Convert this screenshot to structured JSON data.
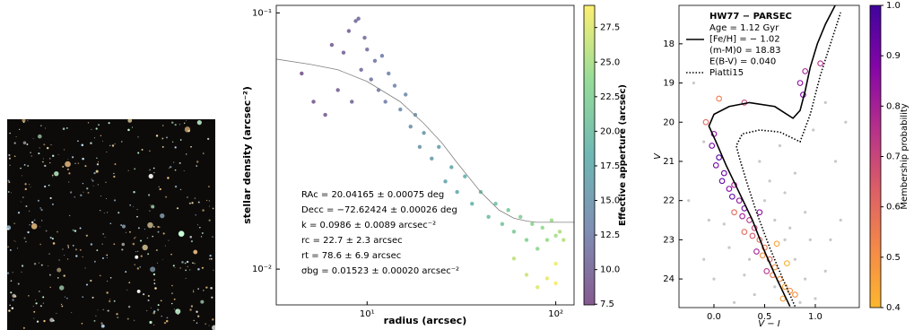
{
  "chart_data": [
    {
      "type": "scatter",
      "xlabel": "radius (arcsec)",
      "ylabel": "stellar density (arcsec⁻²)",
      "xscale": "log",
      "yscale": "log",
      "xlim": [
        3.3,
        125
      ],
      "ylim": [
        0.00725,
        0.107
      ],
      "xticks": [
        {
          "value": 10,
          "label": "10¹"
        },
        {
          "value": 100,
          "label": "10²"
        }
      ],
      "yticks": [
        {
          "value": 0.1,
          "label": "10⁻¹"
        },
        {
          "value": 0.01,
          "label": "10⁻²"
        }
      ],
      "x": [
        4.5,
        5.2,
        6,
        6.5,
        7,
        7.5,
        8,
        8.3,
        8.7,
        9,
        9.3,
        9.7,
        10,
        10.5,
        11,
        11.5,
        12,
        12.5,
        13,
        14,
        15,
        16,
        17,
        18,
        19,
        20,
        22,
        24,
        26,
        28,
        30,
        33,
        36,
        40,
        44,
        48,
        52,
        56,
        60,
        65,
        70,
        75,
        80,
        85,
        90,
        95,
        100,
        105,
        110,
        60,
        70,
        80,
        90,
        100,
        100
      ],
      "y": [
        0.058,
        0.045,
        0.04,
        0.075,
        0.05,
        0.07,
        0.085,
        0.045,
        0.093,
        0.095,
        0.06,
        0.08,
        0.072,
        0.055,
        0.065,
        0.05,
        0.068,
        0.045,
        0.058,
        0.052,
        0.042,
        0.048,
        0.036,
        0.04,
        0.03,
        0.034,
        0.027,
        0.03,
        0.022,
        0.025,
        0.02,
        0.023,
        0.018,
        0.02,
        0.016,
        0.018,
        0.015,
        0.017,
        0.014,
        0.016,
        0.013,
        0.015,
        0.012,
        0.0145,
        0.013,
        0.0155,
        0.0135,
        0.014,
        0.013,
        0.011,
        0.0095,
        0.0085,
        0.0092,
        0.0105,
        0.0088
      ],
      "c": [
        8.5,
        9,
        9.5,
        9.5,
        9.8,
        10,
        10,
        10.2,
        10.5,
        10.7,
        11,
        11.2,
        11.3,
        11.6,
        11.9,
        12.1,
        12.4,
        12.6,
        12.9,
        13.3,
        13.7,
        14.1,
        14.5,
        14.8,
        15.1,
        15.4,
        16,
        16.5,
        17,
        17.4,
        17.8,
        18.4,
        18.9,
        19.5,
        20.1,
        20.6,
        21.1,
        21.5,
        21.9,
        22.4,
        22.8,
        23.2,
        23.6,
        24,
        24.3,
        24.6,
        25,
        25.3,
        25.6,
        26,
        26.8,
        27.5,
        28,
        28.5,
        28.8
      ],
      "colormap": "viridis",
      "colorbar": {
        "label": "Effective apperture (arcsec)",
        "lim": [
          7.45,
          29.1
        ],
        "ticks": [
          7.5,
          {
            "value": 10,
            "label": "10.0"
          },
          12.5,
          {
            "value": 15,
            "label": "15.0"
          },
          17.5,
          {
            "value": 20,
            "label": "20.0"
          },
          22.5,
          {
            "value": 25,
            "label": "25.0"
          },
          27.5
        ]
      },
      "fit": {
        "color": "#808080",
        "x": [
          3.3,
          5,
          7,
          10,
          15,
          20,
          25,
          30,
          40,
          50,
          60,
          70,
          78.6,
          90,
          110,
          125
        ],
        "y": [
          0.066,
          0.063,
          0.06,
          0.054,
          0.045,
          0.037,
          0.031,
          0.026,
          0.02,
          0.017,
          0.0158,
          0.0154,
          0.01523,
          0.01523,
          0.01523,
          0.01523
        ]
      },
      "annotations": [
        "RAc = 20.04165 ± 0.00075 deg",
        "Decc = −72.62424 ± 0.00026 deg",
        "k = 0.0986 ± 0.0089 arcsec⁻²",
        "rc = 22.7 ± 2.3 arcsec",
        "rt = 78.6 ± 6.9 arcsec",
        "σbg = 0.01523 ± 0.00020 arcsec⁻²"
      ]
    },
    {
      "type": "scatter",
      "xlabel": "V − I",
      "ylabel": "V",
      "xlim": [
        -0.345,
        1.434
      ],
      "ylim": [
        24.73,
        17.02
      ],
      "xticks": [
        {
          "value": 0,
          "label": "0.0"
        },
        0.5,
        {
          "value": 1,
          "label": "1.0"
        }
      ],
      "yticks": [
        18,
        19,
        20,
        21,
        22,
        23,
        24
      ],
      "field": {
        "color": "#c8c8c8",
        "x": [
          -0.2,
          -0.1,
          0.1,
          0.3,
          0.5,
          0.6,
          0.7,
          0.8,
          0.9,
          1.0,
          1.1,
          0.4,
          0.2,
          0.0,
          -0.1,
          0.55,
          0.7,
          0.9,
          1.2,
          1.3,
          0.65,
          -0.25,
          0.95,
          0.85,
          0.35,
          0.75,
          1.15,
          0.6,
          0.15,
          -0.05,
          1.25,
          0.45,
          0.8,
          1.1,
          0.98
        ],
        "y": [
          19.0,
          20.5,
          22.6,
          23.9,
          22.0,
          22.5,
          23.0,
          23.5,
          24.0,
          24.5,
          23.8,
          24.4,
          24.6,
          24.0,
          23.5,
          21.5,
          21.8,
          22.3,
          21.0,
          20.0,
          20.6,
          22.0,
          23.0,
          24.6,
          23.5,
          22.7,
          23.0,
          24.2,
          23.2,
          22.5,
          22.5,
          21.0,
          21.3,
          19.5,
          20.2
        ]
      },
      "members": {
        "x": [
          0.0,
          -0.02,
          0.05,
          0.02,
          0.1,
          0.08,
          0.15,
          0.2,
          0.18,
          0.25,
          0.3,
          0.28,
          0.35,
          0.4,
          0.38,
          0.45,
          0.5,
          0.48,
          0.55,
          0.6,
          0.58,
          0.65,
          0.7,
          0.75,
          0.68,
          0.8,
          0.42,
          0.52,
          0.3,
          0.62,
          0.85,
          0.9,
          0.88,
          1.05,
          -0.08,
          0.05,
          0.3,
          0.72,
          0.45,
          0.2
        ],
        "y": [
          20.3,
          20.6,
          20.9,
          21.1,
          21.3,
          21.5,
          21.7,
          21.6,
          21.9,
          22.0,
          22.2,
          22.4,
          22.5,
          22.7,
          22.9,
          23.0,
          23.2,
          23.4,
          23.5,
          23.7,
          23.9,
          24.0,
          24.2,
          24.3,
          24.5,
          24.4,
          23.3,
          23.8,
          22.8,
          23.1,
          19.0,
          18.7,
          19.3,
          18.5,
          20.0,
          19.4,
          19.5,
          23.6,
          22.3,
          22.3
        ],
        "p": [
          0.85,
          0.9,
          0.95,
          0.9,
          0.92,
          0.95,
          0.88,
          0.8,
          0.93,
          0.85,
          0.9,
          0.8,
          0.75,
          0.7,
          0.65,
          0.6,
          0.55,
          0.5,
          0.6,
          0.5,
          0.55,
          0.5,
          0.45,
          0.5,
          0.45,
          0.5,
          0.8,
          0.75,
          0.6,
          0.45,
          0.85,
          0.8,
          0.9,
          0.75,
          0.6,
          0.55,
          0.7,
          0.42,
          0.85,
          0.6
        ]
      },
      "colormap": "plasma_r",
      "colorbar": {
        "label": "Membership probability",
        "lim": [
          0.4,
          1.0
        ],
        "ticks": [
          0.4,
          0.5,
          0.6,
          0.7,
          0.8,
          0.9,
          {
            "value": 1,
            "label": "1.0"
          }
        ]
      },
      "legend_title": "HW77 − PARSEC",
      "series": [
        {
          "name": [
            "Age = 1.12 Gyr",
            "[Fe/H] = − 1.02",
            "(m-M)0 = 18.83",
            "E(B-V) = 0.040"
          ],
          "style": "solid",
          "color": "#000000",
          "x": [
            0.75,
            0.62,
            0.5,
            0.38,
            0.25,
            0.12,
            0.02,
            -0.05,
            0.0,
            0.15,
            0.35,
            0.6,
            0.78,
            0.85,
            0.9,
            0.95,
            1.02,
            1.1,
            1.2
          ],
          "y": [
            24.7,
            24.0,
            23.3,
            22.5,
            21.8,
            21.1,
            20.5,
            20.1,
            19.8,
            19.6,
            19.5,
            19.6,
            19.9,
            19.7,
            19.2,
            18.6,
            18.0,
            17.5,
            17.0
          ]
        },
        {
          "name": "Piatti15",
          "style": "dotted",
          "color": "#000000",
          "x": [
            0.8,
            0.68,
            0.55,
            0.42,
            0.32,
            0.25,
            0.22,
            0.28,
            0.45,
            0.65,
            0.85,
            0.95,
            1.05,
            1.15,
            1.25
          ],
          "y": [
            24.7,
            24.0,
            23.2,
            22.3,
            21.5,
            20.9,
            20.6,
            20.3,
            20.2,
            20.25,
            20.5,
            19.8,
            18.8,
            18.0,
            17.2
          ]
        }
      ]
    }
  ]
}
